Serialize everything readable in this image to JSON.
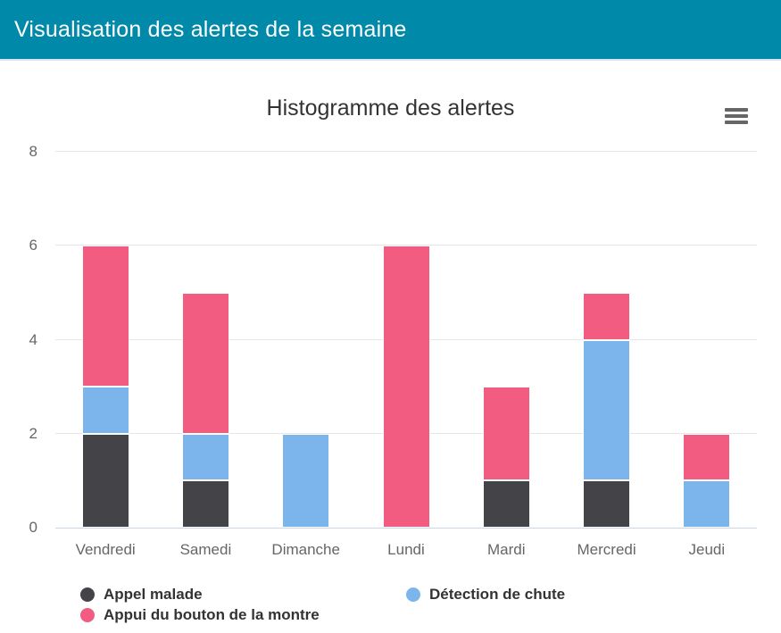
{
  "header": {
    "title": "Visualisation des alertes de la semaine",
    "background_color": "#0089a8"
  },
  "chart": {
    "menu_icon": "hamburger-menu-icon"
  },
  "chart_data": {
    "type": "bar",
    "stacked": true,
    "title": "Histogramme des alertes",
    "categories": [
      "Vendredi",
      "Samedi",
      "Dimanche",
      "Lundi",
      "Mardi",
      "Mercredi",
      "Jeudi"
    ],
    "series": [
      {
        "name": "Appel malade",
        "color": "#434348",
        "values": [
          2,
          1,
          0,
          0,
          1,
          1,
          0
        ]
      },
      {
        "name": "Détection de chute",
        "color": "#7cb5ec",
        "values": [
          1,
          1,
          2,
          0,
          0,
          3,
          1
        ]
      },
      {
        "name": "Appui du bouton de la montre",
        "color": "#f15c80",
        "values": [
          3,
          3,
          0,
          6,
          2,
          1,
          1
        ]
      }
    ],
    "totals_by_category": [
      6,
      5,
      2,
      6,
      3,
      5,
      2
    ],
    "xlabel": "",
    "ylabel": "",
    "ylim": [
      0,
      8
    ],
    "yticks": [
      0,
      2,
      4,
      6,
      8
    ],
    "grid": true,
    "legend_position": "bottom",
    "colors": {
      "grid_line": "#e6e6e6",
      "axis_line": "#ccd6eb",
      "axis_label": "#666666",
      "title": "#333333",
      "legend_text": "#333333",
      "menu_icon": "#666666"
    }
  }
}
